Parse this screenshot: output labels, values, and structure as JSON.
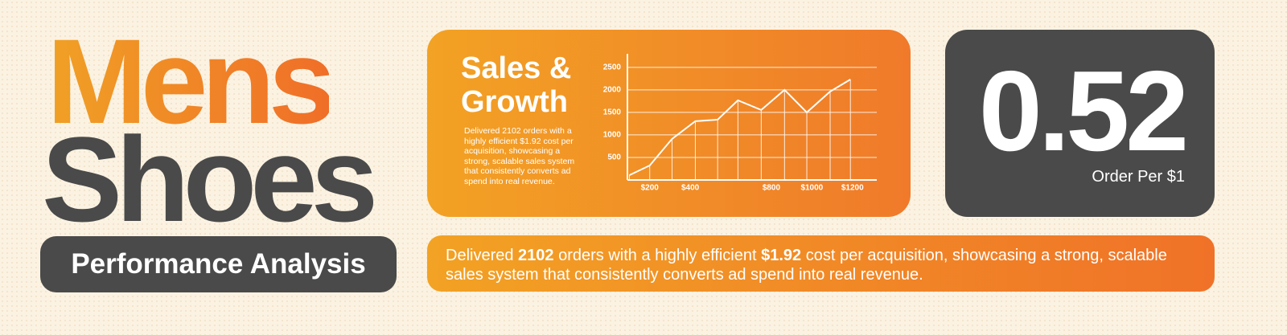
{
  "header": {
    "title_line1": "Mens",
    "title_line2": "Shoes",
    "badge": "Performance Analysis"
  },
  "chart_data": {
    "type": "line",
    "title": "Sales & Growth",
    "description": "Delivered 2102 orders with a highly efficient $1.92 cost per acquisition, showcasing a strong, scalable sales system that consistently converts ad spend into real revenue.",
    "x": [
      100,
      200,
      310,
      425,
      535,
      635,
      750,
      865,
      975,
      1090,
      1190
    ],
    "values": [
      107,
      321,
      911,
      1304,
      1339,
      1768,
      1554,
      2000,
      1500,
      1964,
      2232
    ],
    "color": "#ffffff",
    "xlim": [
      90,
      1320
    ],
    "xticks": [
      {
        "value": 200,
        "label": "$200"
      },
      {
        "value": 400,
        "label": "$400"
      },
      {
        "value": 800,
        "label": "$800"
      },
      {
        "value": 1000,
        "label": "$1000"
      },
      {
        "value": 1200,
        "label": "$1200"
      }
    ],
    "ylim": [
      0,
      2800
    ],
    "yticks": [
      500,
      1000,
      1500,
      2000,
      2500
    ],
    "grid": true
  },
  "stat": {
    "value": "0.52",
    "label": "Order Per $1"
  },
  "summary": {
    "parts": [
      {
        "text": "Delivered ",
        "bold": false
      },
      {
        "text": "2102",
        "bold": true
      },
      {
        "text": " orders with a highly efficient ",
        "bold": false
      },
      {
        "text": "$1.92",
        "bold": true
      },
      {
        "text": " cost per acquisition, showcasing a strong, scalable sales system that consistently converts ad spend into real revenue.",
        "bold": false
      }
    ]
  }
}
